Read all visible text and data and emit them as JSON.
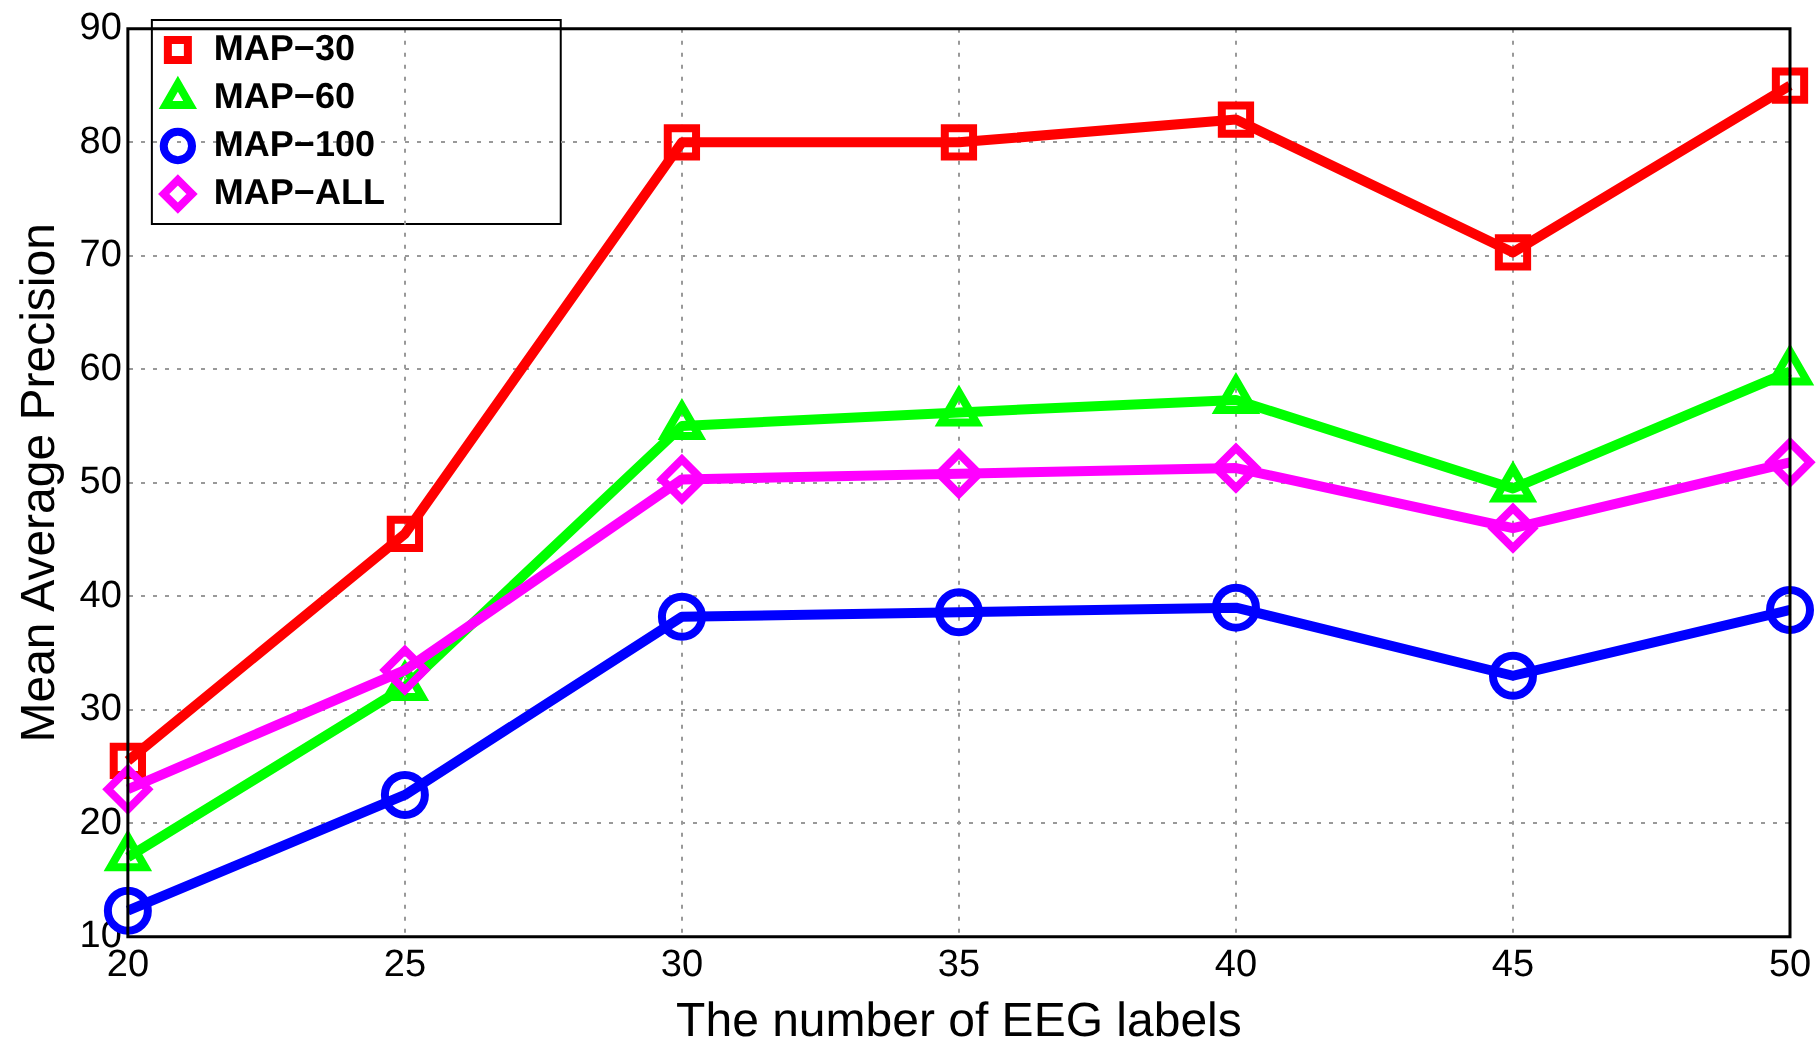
{
  "chart_data": {
    "type": "line",
    "xlabel": "The number of EEG labels",
    "ylabel": "Mean Average Precision",
    "x": [
      20,
      25,
      30,
      35,
      40,
      45,
      50
    ],
    "series": [
      {
        "name": "MAP−30",
        "color": "#ff0000",
        "marker": "square",
        "values": [
          25.5,
          45.5,
          80,
          80,
          82,
          70.3,
          85
        ]
      },
      {
        "name": "MAP−60",
        "color": "#00ff00",
        "marker": "triangle",
        "values": [
          17,
          32,
          55,
          56.2,
          57.3,
          49.5,
          59.8
        ]
      },
      {
        "name": "MAP−100",
        "color": "#0000ff",
        "marker": "circle",
        "values": [
          12.3,
          22.5,
          38.2,
          38.6,
          39,
          33,
          38.8
        ]
      },
      {
        "name": "MAP−ALL",
        "color": "#ff00ff",
        "marker": "diamond",
        "values": [
          23,
          33.5,
          50.3,
          50.8,
          51.3,
          46,
          51.8
        ]
      }
    ],
    "xlim": [
      20,
      50
    ],
    "xticks": [
      20,
      25,
      30,
      35,
      40,
      45,
      50
    ],
    "ylim": [
      10,
      90
    ],
    "yticks": [
      10,
      20,
      30,
      40,
      50,
      60,
      70,
      80,
      90
    ],
    "grid": true,
    "legend": "top left",
    "line_style": "solid"
  }
}
